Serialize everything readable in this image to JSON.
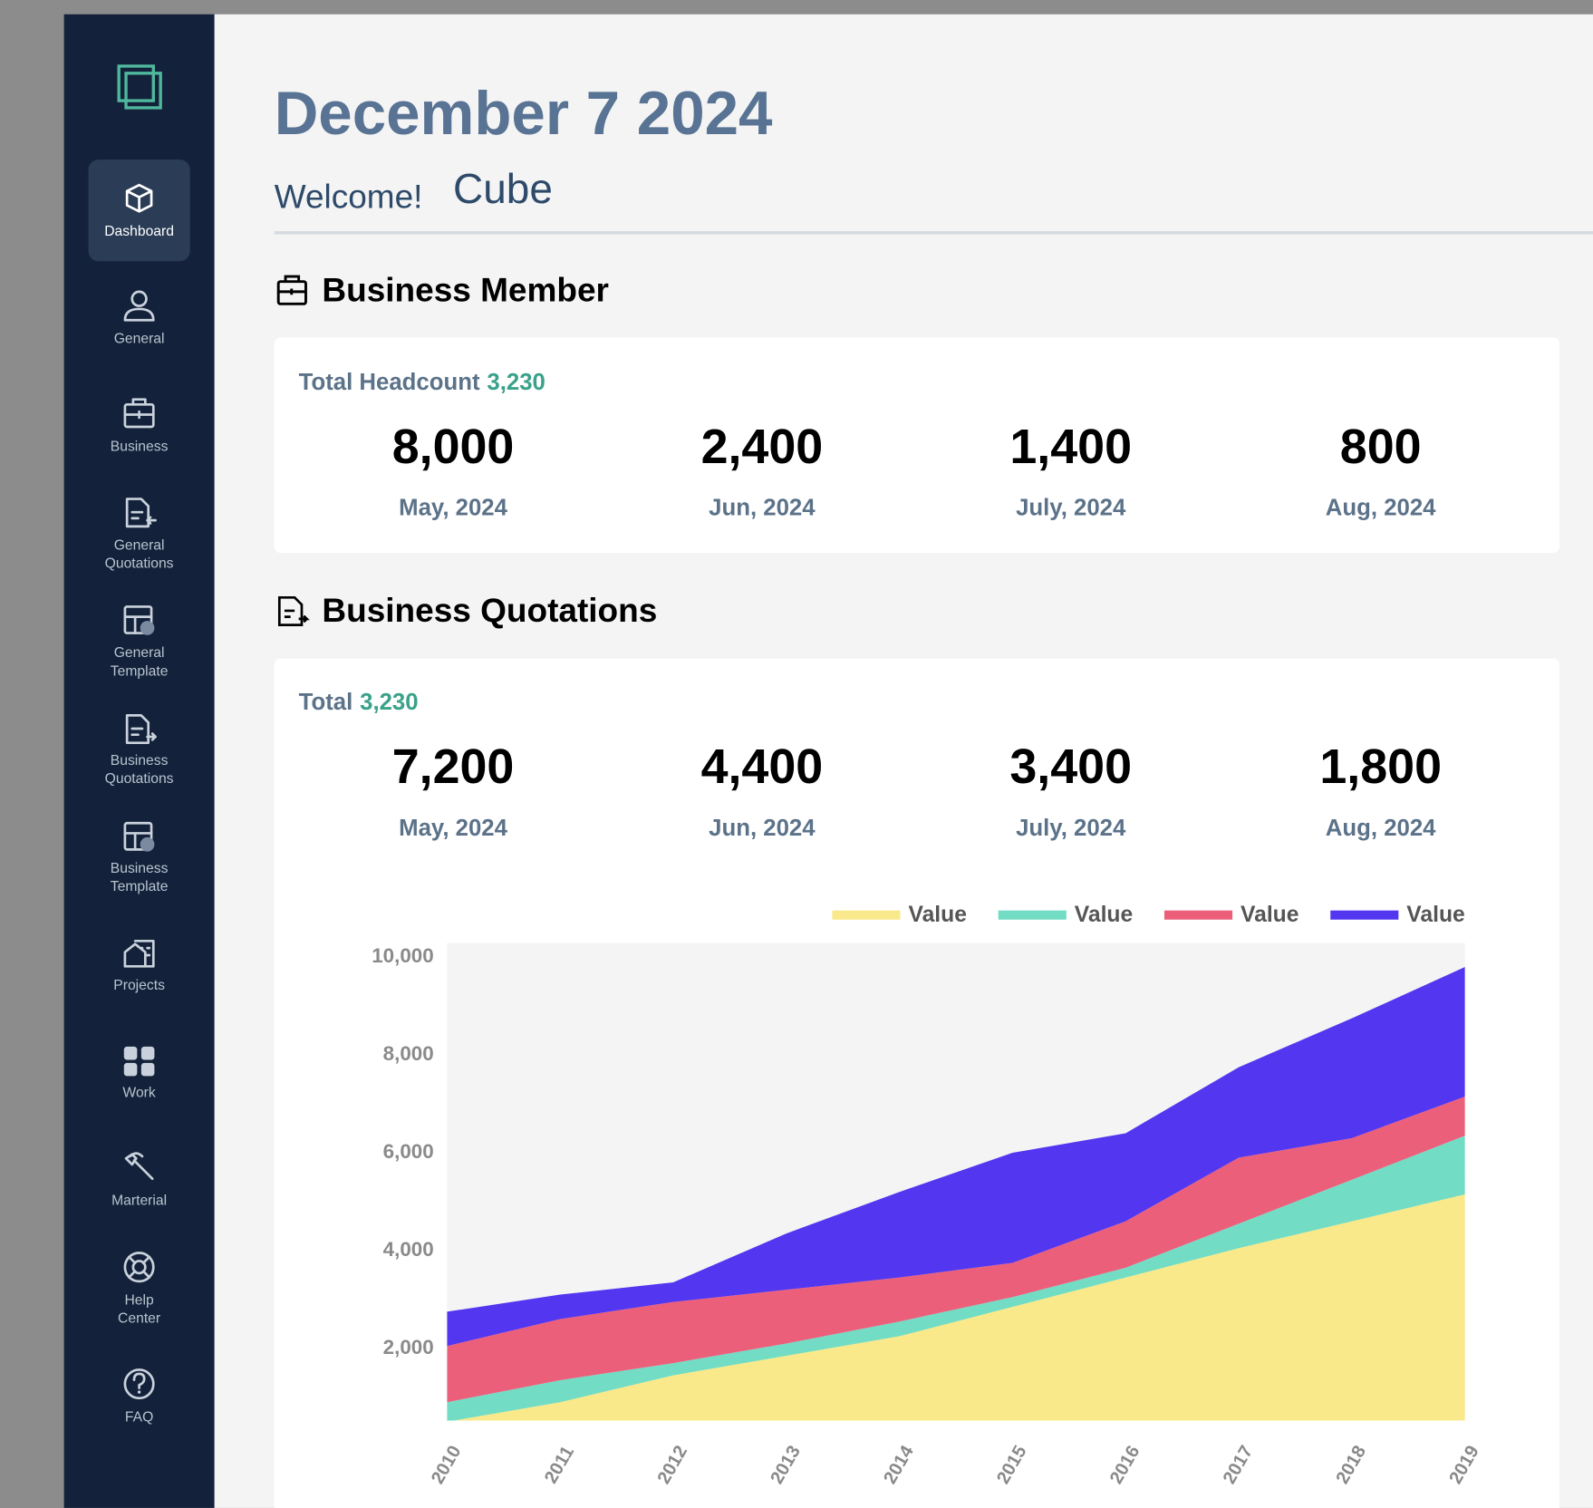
{
  "sidebar": {
    "items": [
      [
        "Dashboard"
      ],
      [
        "General"
      ],
      [
        "Business"
      ],
      [
        "General",
        "Quotations"
      ],
      [
        "General",
        "Template"
      ],
      [
        "Business",
        "Quotations"
      ],
      [
        "Business",
        "Template"
      ],
      [
        "Projects"
      ],
      [
        "Work"
      ],
      [
        "Marterial"
      ],
      [
        "Help",
        "Center"
      ],
      [
        "FAQ"
      ]
    ]
  },
  "header": {
    "date": "December 7 2024",
    "welcome": "Welcome!",
    "name": "Cube"
  },
  "member": {
    "title": "Business Member",
    "total_label": "Total Headcount",
    "total_value": "3,230",
    "stats": [
      {
        "value": "8,000",
        "label": "May, 2024"
      },
      {
        "value": "2,400",
        "label": "Jun, 2024"
      },
      {
        "value": "1,400",
        "label": "July, 2024"
      },
      {
        "value": "800",
        "label": "Aug, 2024"
      }
    ]
  },
  "quotations": {
    "title": "Business Quotations",
    "total_label": "Total",
    "total_value": "3,230",
    "stats": [
      {
        "value": "7,200",
        "label": "May, 2024"
      },
      {
        "value": "4,400",
        "label": "Jun, 2024"
      },
      {
        "value": "3,400",
        "label": "July, 2024"
      },
      {
        "value": "1,800",
        "label": "Aug, 2024"
      }
    ]
  },
  "chart_data": {
    "type": "area",
    "stacked": true,
    "categories": [
      "2010",
      "2011",
      "2012",
      "2013",
      "2014",
      "2015",
      "2016",
      "2017",
      "2018",
      "2019"
    ],
    "series": [
      {
        "name": "Value",
        "color": "#f9e98a",
        "values": [
          500,
          900,
          1450,
          1850,
          2250,
          2850,
          3450,
          4050,
          4600,
          5150
        ]
      },
      {
        "name": "Value",
        "color": "#72dcc4",
        "values": [
          400,
          450,
          250,
          250,
          300,
          200,
          200,
          500,
          850,
          1200
        ]
      },
      {
        "name": "Value",
        "color": "#ec5f7a",
        "values": [
          1150,
          1250,
          1250,
          1100,
          900,
          700,
          950,
          1350,
          850,
          800
        ]
      },
      {
        "name": "Value",
        "color": "#5236f0",
        "values": [
          700,
          500,
          400,
          1150,
          1750,
          2250,
          1800,
          1850,
          2450,
          2650
        ]
      }
    ],
    "ylim": [
      525,
      10290
    ],
    "yticks": [
      {
        "value": 2000,
        "label": "2,000"
      },
      {
        "value": 4000,
        "label": "4,000"
      },
      {
        "value": 6000,
        "label": "6,000"
      },
      {
        "value": 8000,
        "label": "8,000"
      },
      {
        "value": 10000,
        "label": "10,000"
      }
    ],
    "legend": "top-right",
    "grid": false
  }
}
